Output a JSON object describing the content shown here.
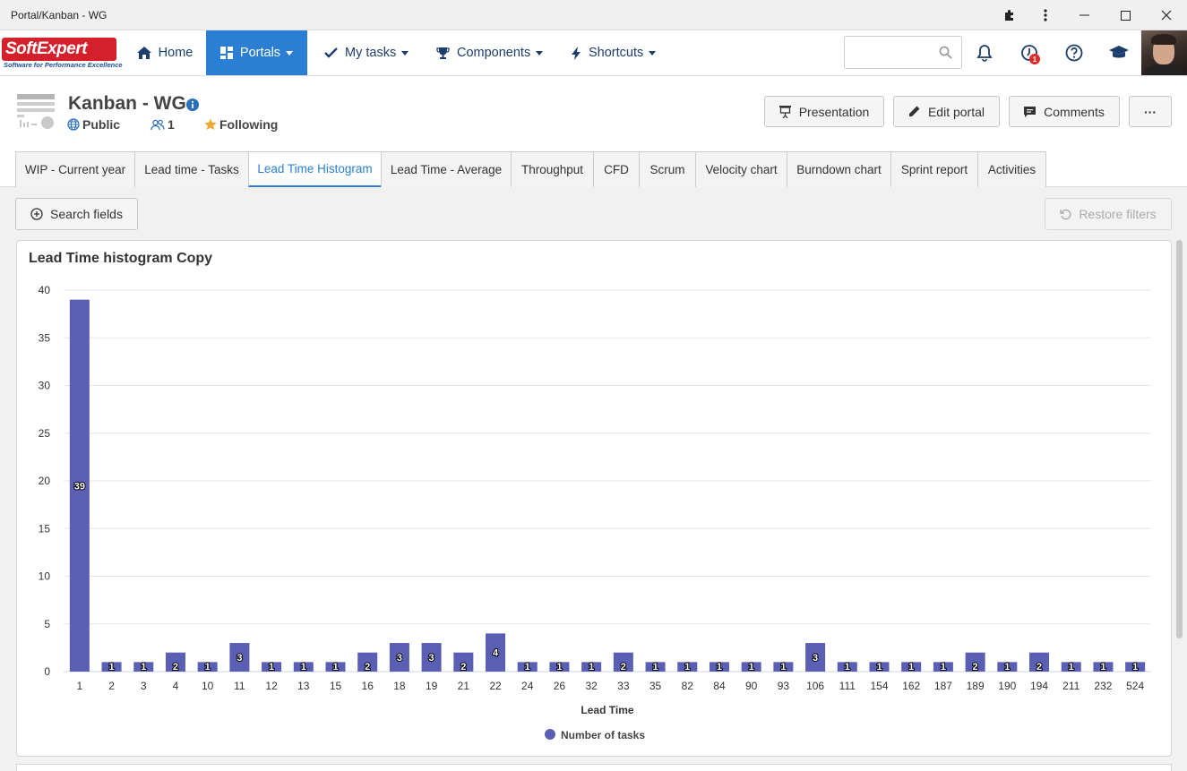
{
  "window": {
    "title": "Portal/Kanban - WG",
    "icons": [
      "puzzle-icon",
      "kebab-icon",
      "minimize-icon",
      "maximize-icon",
      "close-icon"
    ]
  },
  "logo": {
    "brand_soft": "Soft",
    "brand_expert": "Expert",
    "tagline": "Software for Performance Excellence"
  },
  "nav": {
    "items": [
      {
        "label": "Home",
        "icon": "home-icon",
        "active": false,
        "dropdown": false
      },
      {
        "label": "Portals",
        "icon": "portals-icon",
        "active": true,
        "dropdown": true
      },
      {
        "label": "My tasks",
        "icon": "check-icon",
        "active": false,
        "dropdown": true
      },
      {
        "label": "Components",
        "icon": "trophy-icon",
        "active": false,
        "dropdown": true
      },
      {
        "label": "Shortcuts",
        "icon": "bolt-icon",
        "active": false,
        "dropdown": true
      }
    ],
    "search_placeholder": "",
    "notification_badge": "1"
  },
  "header": {
    "title": "Kanban - WG",
    "visibility": "Public",
    "members": "1",
    "following": "Following",
    "buttons": {
      "presentation": "Presentation",
      "edit_portal": "Edit portal",
      "comments": "Comments",
      "more": "···"
    }
  },
  "tabs": [
    {
      "label": "WIP - Current year",
      "active": false
    },
    {
      "label": "Lead time - Tasks",
      "active": false
    },
    {
      "label": "Lead Time Histogram",
      "active": true
    },
    {
      "label": "Lead Time - Average",
      "active": false
    },
    {
      "label": "Throughput",
      "active": false
    },
    {
      "label": "CFD",
      "active": false
    },
    {
      "label": "Scrum",
      "active": false
    },
    {
      "label": "Velocity chart",
      "active": false
    },
    {
      "label": "Burndown chart",
      "active": false
    },
    {
      "label": "Sprint report",
      "active": false
    },
    {
      "label": "Activities",
      "active": false
    }
  ],
  "toolbar": {
    "search_fields": "Search fields",
    "restore_filters": "Restore filters"
  },
  "colors": {
    "accent": "#2a7fd4",
    "bar": "#5b5fb4",
    "nav_text": "#1d3d6b",
    "star": "#f0a830"
  },
  "chart_data": {
    "type": "bar",
    "title": "Lead Time histogram Copy",
    "xlabel": "Lead Time",
    "ylabel": "",
    "ylim": [
      0,
      40
    ],
    "yticks": [
      0,
      5,
      10,
      15,
      20,
      25,
      30,
      35,
      40
    ],
    "grid": true,
    "legend_position": "bottom-center",
    "categories": [
      "1",
      "2",
      "3",
      "4",
      "10",
      "11",
      "12",
      "13",
      "15",
      "16",
      "18",
      "19",
      "21",
      "22",
      "24",
      "26",
      "32",
      "33",
      "35",
      "82",
      "84",
      "90",
      "93",
      "106",
      "111",
      "154",
      "162",
      "187",
      "189",
      "190",
      "194",
      "211",
      "232",
      "524"
    ],
    "series": [
      {
        "name": "Number of tasks",
        "color": "#5b5fb4",
        "values": [
          39,
          1,
          1,
          2,
          1,
          3,
          1,
          1,
          1,
          2,
          3,
          3,
          2,
          4,
          1,
          1,
          1,
          2,
          1,
          1,
          1,
          1,
          1,
          3,
          1,
          1,
          1,
          1,
          2,
          1,
          2,
          1,
          1,
          1
        ]
      }
    ]
  }
}
